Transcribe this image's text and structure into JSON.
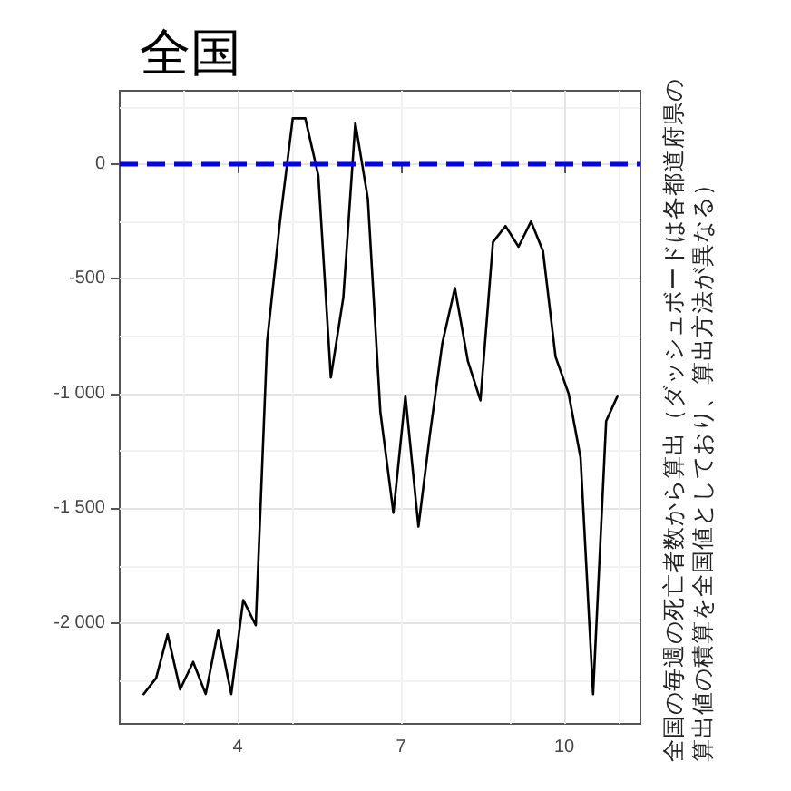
{
  "chart_data": {
    "type": "line",
    "title": "全国",
    "annotations": [
      "全国の毎週の死亡者数から算出（ダッシュボードは各都道府県の算出値の積算を全国値としており、算出方法が異なる）"
    ],
    "x": [
      2.27,
      2.5,
      2.71,
      2.94,
      3.18,
      3.41,
      3.64,
      3.88,
      4.1,
      4.33,
      4.54,
      4.78,
      5.01,
      5.24,
      5.48,
      5.71,
      5.94,
      6.16,
      6.39,
      6.62,
      6.86,
      7.08,
      7.32,
      7.53,
      7.76,
      7.99,
      8.23,
      8.46,
      8.69,
      8.92,
      9.16,
      9.39,
      9.61,
      9.84,
      10.08,
      10.3,
      10.53,
      10.77,
      10.98
    ],
    "series": [
      {
        "color": "#000000",
        "values": [
          -2310,
          -2240,
          -2050,
          -2290,
          -2170,
          -2310,
          -2030,
          -2310,
          -1900,
          -2010,
          -770,
          -240,
          200,
          200,
          -50,
          -930,
          -580,
          180,
          -150,
          -1080,
          -1520,
          -1010,
          -1580,
          -1180,
          -780,
          -540,
          -860,
          -1030,
          -340,
          -270,
          -360,
          -250,
          -380,
          -840,
          -1000,
          -1280,
          -2310,
          -1120,
          -1010
        ]
      }
    ],
    "xlim": [
      1.83,
      11.4
    ],
    "xticks": [
      4,
      7,
      10
    ],
    "ylim": [
      -2440,
      320
    ],
    "yticks": [
      {
        "value": -2000,
        "label": "-2 000"
      },
      {
        "value": -1500,
        "label": "-1 500"
      },
      {
        "value": -1000,
        "label": "-1 000"
      },
      -500,
      0
    ],
    "ref_lines": [
      {
        "axis": "y",
        "value": 0,
        "color": "#0000ff",
        "line_style": "dashed"
      }
    ],
    "grid": true,
    "marker": "none",
    "line_style": "solid"
  }
}
